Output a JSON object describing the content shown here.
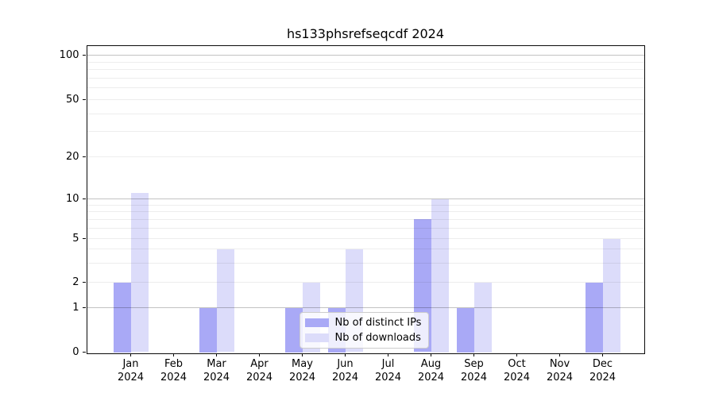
{
  "chart_data": {
    "type": "bar",
    "title": "hs133phsrefseqcdf 2024",
    "months": [
      "Jan",
      "Feb",
      "Mar",
      "Apr",
      "May",
      "Jun",
      "Jul",
      "Aug",
      "Sep",
      "Oct",
      "Nov",
      "Dec"
    ],
    "year": "2024",
    "series": [
      {
        "name": "Nb of distinct IPs",
        "color": "#a9a9f6",
        "values": [
          2,
          0,
          1,
          0,
          1,
          1,
          0,
          7,
          1,
          0,
          0,
          2
        ]
      },
      {
        "name": "Nb of downloads",
        "color": "#dcdcfa",
        "values": [
          11,
          0,
          4,
          0,
          2,
          4,
          0,
          10,
          2,
          0,
          0,
          5
        ]
      }
    ],
    "y_ticks": [
      0,
      1,
      2,
      5,
      10,
      20,
      50,
      100
    ],
    "y_minor_gridlines": [
      2,
      3,
      4,
      5,
      6,
      7,
      8,
      9,
      20,
      30,
      40,
      50,
      60,
      70,
      80,
      90
    ],
    "y_major_gridlines": [
      1,
      10,
      100
    ],
    "ylim": [
      0,
      100
    ],
    "yscale": "symlog",
    "grid": "horizontal",
    "legend_position": "lower center-right inside plot",
    "colors": {
      "distinct_ips": "#a9a9f6",
      "downloads": "#dcdcfa",
      "major_grid": "#bfbfbf",
      "minor_grid": "#ededed",
      "spine": "#0a0a0a"
    }
  }
}
